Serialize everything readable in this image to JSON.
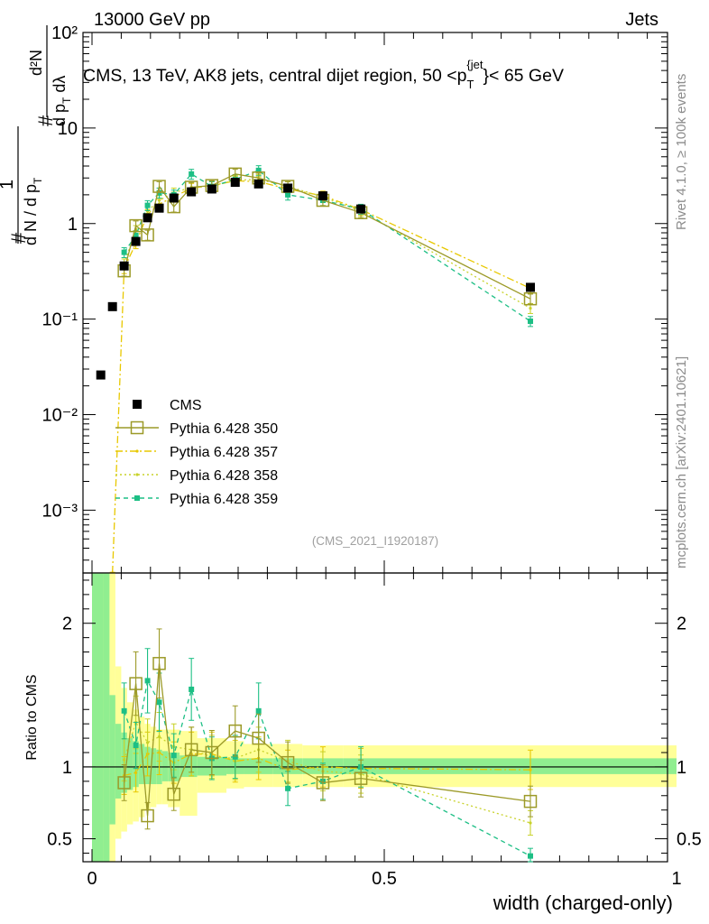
{
  "header": {
    "left": "13000 GeV pp",
    "right": "Jets"
  },
  "side_labels": {
    "rivet": "Rivet 4.1.0, ≥ 100k events",
    "mcplots": "mcplots.cern.ch [arXiv:2401.10621]"
  },
  "analysis_id": "(CMS_2021_I1920187)",
  "chart_data": [
    {
      "type": "scatter",
      "role": "main",
      "title": "CMS, 13 TeV, AK8 jets, central dijet region, 50 <p_T^{jet}< 65 GeV",
      "title_parts": {
        "prefix": "CMS, 13 TeV, AK8 jets, central dijet region, 50 <p",
        "sub": "T",
        "sup": "{jet",
        "suffix": "}< 65 GeV"
      },
      "xlabel": "width (charged-only)",
      "ylabel": "1/dN/dp_T  # d²N/dp_T dλ",
      "ylabel_parts": {
        "hash": "#",
        "one": "1",
        "den": "d N / d p",
        "den_sub": "T",
        "num2": "d²N",
        "den2": "d p",
        "den2_sub": "T",
        "den2_tail": " dλ"
      },
      "xlim": [
        0,
        1
      ],
      "ylim": [
        0.00022,
        100
      ],
      "yscale": "log",
      "x_ticks": [
        "0",
        "0.5",
        "1"
      ],
      "y_ticks": [
        "10⁻³",
        "10⁻²",
        "10⁻¹",
        "1",
        "10",
        "10²"
      ],
      "y_tick_values": [
        0.001,
        0.01,
        0.1,
        1,
        10,
        100
      ],
      "x_tick_values": [
        0,
        0.5,
        1
      ],
      "legend_position": "lower-left",
      "series": [
        {
          "name": "CMS",
          "style": "data",
          "color": "#000000",
          "x": [
            0.015,
            0.035,
            0.055,
            0.075,
            0.095,
            0.115,
            0.14,
            0.17,
            0.205,
            0.245,
            0.285,
            0.335,
            0.395,
            0.46,
            0.75
          ],
          "y": [
            0.026,
            0.135,
            0.36,
            0.65,
            1.15,
            1.45,
            1.85,
            2.15,
            2.3,
            2.7,
            2.6,
            2.35,
            1.95,
            1.42,
            0.215
          ]
        },
        {
          "name": "Pythia 6.428 350",
          "style": "open-square-solid",
          "color": "#9c9a28",
          "x": [
            0.055,
            0.075,
            0.095,
            0.115,
            0.14,
            0.17,
            0.205,
            0.245,
            0.285,
            0.335,
            0.395,
            0.46,
            0.75
          ],
          "y": [
            0.32,
            0.95,
            0.76,
            2.45,
            1.5,
            2.4,
            2.5,
            3.3,
            3.0,
            2.45,
            1.75,
            1.3,
            0.163
          ]
        },
        {
          "name": "Pythia 6.428 357",
          "style": "dashdot",
          "color": "#e8c800",
          "x": [
            0.035,
            0.055,
            0.075,
            0.095,
            0.115,
            0.14,
            0.17,
            0.205,
            0.245,
            0.285,
            0.335,
            0.395,
            0.46,
            0.75
          ],
          "y": [
            0.0002,
            0.34,
            0.62,
            1.25,
            1.6,
            1.9,
            2.35,
            2.5,
            2.8,
            2.75,
            2.3,
            1.95,
            1.4,
            0.21
          ]
        },
        {
          "name": "Pythia 6.428 358",
          "style": "dotted",
          "color": "#c8d22a",
          "x": [
            0.055,
            0.075,
            0.095,
            0.115,
            0.14,
            0.17,
            0.205,
            0.245,
            0.285,
            0.335,
            0.395,
            0.46,
            0.75
          ],
          "y": [
            0.38,
            0.85,
            1.35,
            1.75,
            2.1,
            2.4,
            2.45,
            2.85,
            2.9,
            2.45,
            1.9,
            1.35,
            0.13
          ]
        },
        {
          "name": "Pythia 6.428 359",
          "style": "filled-square-dashed",
          "color": "#1dbf85",
          "x": [
            0.055,
            0.075,
            0.095,
            0.115,
            0.14,
            0.17,
            0.205,
            0.245,
            0.285,
            0.335,
            0.395,
            0.46,
            0.75
          ],
          "y": [
            0.5,
            0.75,
            1.55,
            2.1,
            2.0,
            3.3,
            2.45,
            2.9,
            3.6,
            2.0,
            1.75,
            1.42,
            0.095
          ]
        }
      ]
    },
    {
      "type": "line",
      "role": "ratio",
      "ylabel": "Ratio to CMS",
      "xlim": [
        0,
        1
      ],
      "ylim": [
        0.34,
        2.35
      ],
      "y_ticks": [
        "0.5",
        "1",
        "2"
      ],
      "y_tick_values": [
        0.5,
        1,
        2
      ],
      "reference_line": 1,
      "bands": {
        "x_edges": [
          0,
          0.02,
          0.03,
          0.04,
          0.05,
          0.06,
          0.07,
          0.08,
          0.09,
          0.1,
          0.11,
          0.12,
          0.13,
          0.15,
          0.18,
          0.23,
          0.26,
          0.31,
          0.36,
          0.43,
          0.5,
          1.0
        ],
        "inner_color": "#90ee90",
        "outer_color": "#ffff99",
        "inner_low": [
          0.32,
          0.32,
          0.6,
          0.78,
          0.82,
          0.84,
          0.86,
          0.88,
          0.88,
          0.88,
          0.88,
          0.9,
          0.9,
          0.93,
          0.94,
          0.95,
          0.95,
          0.95,
          0.95,
          0.95,
          0.95
        ],
        "inner_high": [
          2.4,
          2.4,
          1.5,
          1.3,
          1.24,
          1.2,
          1.18,
          1.16,
          1.14,
          1.13,
          1.12,
          1.11,
          1.1,
          1.08,
          1.07,
          1.06,
          1.06,
          1.06,
          1.06,
          1.06,
          1.06
        ],
        "outer_low": [
          0.3,
          0.3,
          0.3,
          0.5,
          0.55,
          0.6,
          0.62,
          0.65,
          0.7,
          0.72,
          0.74,
          0.74,
          0.72,
          0.66,
          0.82,
          0.85,
          0.86,
          0.86,
          0.86,
          0.86,
          0.86
        ],
        "outer_high": [
          2.4,
          2.4,
          2.4,
          1.7,
          1.55,
          1.45,
          1.4,
          1.35,
          1.3,
          1.28,
          1.26,
          1.26,
          1.26,
          1.25,
          1.2,
          1.18,
          1.16,
          1.16,
          1.15,
          1.15,
          1.15
        ]
      },
      "series": [
        {
          "name": "Pythia 6.428 350",
          "style": "open-square-solid",
          "color": "#9c9a28",
          "x": [
            0.055,
            0.075,
            0.095,
            0.115,
            0.14,
            0.17,
            0.205,
            0.245,
            0.285,
            0.335,
            0.395,
            0.46,
            0.75
          ],
          "y": [
            0.89,
            1.58,
            0.66,
            1.72,
            0.81,
            1.12,
            1.1,
            1.25,
            1.2,
            1.03,
            0.89,
            0.92,
            0.76
          ]
        },
        {
          "name": "Pythia 6.428 357",
          "style": "dashdot",
          "color": "#e8c800",
          "x": [
            0.055,
            0.075,
            0.095,
            0.115,
            0.14,
            0.17,
            0.205,
            0.245,
            0.285,
            0.335,
            0.395,
            0.46,
            0.75
          ],
          "y": [
            0.94,
            0.96,
            1.09,
            1.1,
            1.03,
            1.09,
            1.09,
            1.04,
            1.06,
            0.98,
            1.0,
            0.99,
            0.98
          ]
        },
        {
          "name": "Pythia 6.428 358",
          "style": "dotted",
          "color": "#c8d22a",
          "x": [
            0.055,
            0.075,
            0.095,
            0.115,
            0.14,
            0.17,
            0.205,
            0.245,
            0.285,
            0.335,
            0.395,
            0.46,
            0.75
          ],
          "y": [
            1.05,
            1.31,
            1.17,
            1.21,
            1.14,
            1.12,
            1.07,
            1.06,
            1.12,
            1.04,
            0.97,
            0.95,
            0.61
          ]
        },
        {
          "name": "Pythia 6.428 359",
          "style": "filled-square-dashed",
          "color": "#1dbf85",
          "x": [
            0.055,
            0.075,
            0.095,
            0.115,
            0.14,
            0.17,
            0.205,
            0.245,
            0.285,
            0.335,
            0.395,
            0.46,
            0.75
          ],
          "y": [
            1.39,
            1.15,
            1.6,
            1.45,
            1.08,
            1.54,
            1.06,
            1.07,
            1.39,
            0.85,
            0.9,
            1.0,
            0.38
          ]
        }
      ]
    }
  ]
}
